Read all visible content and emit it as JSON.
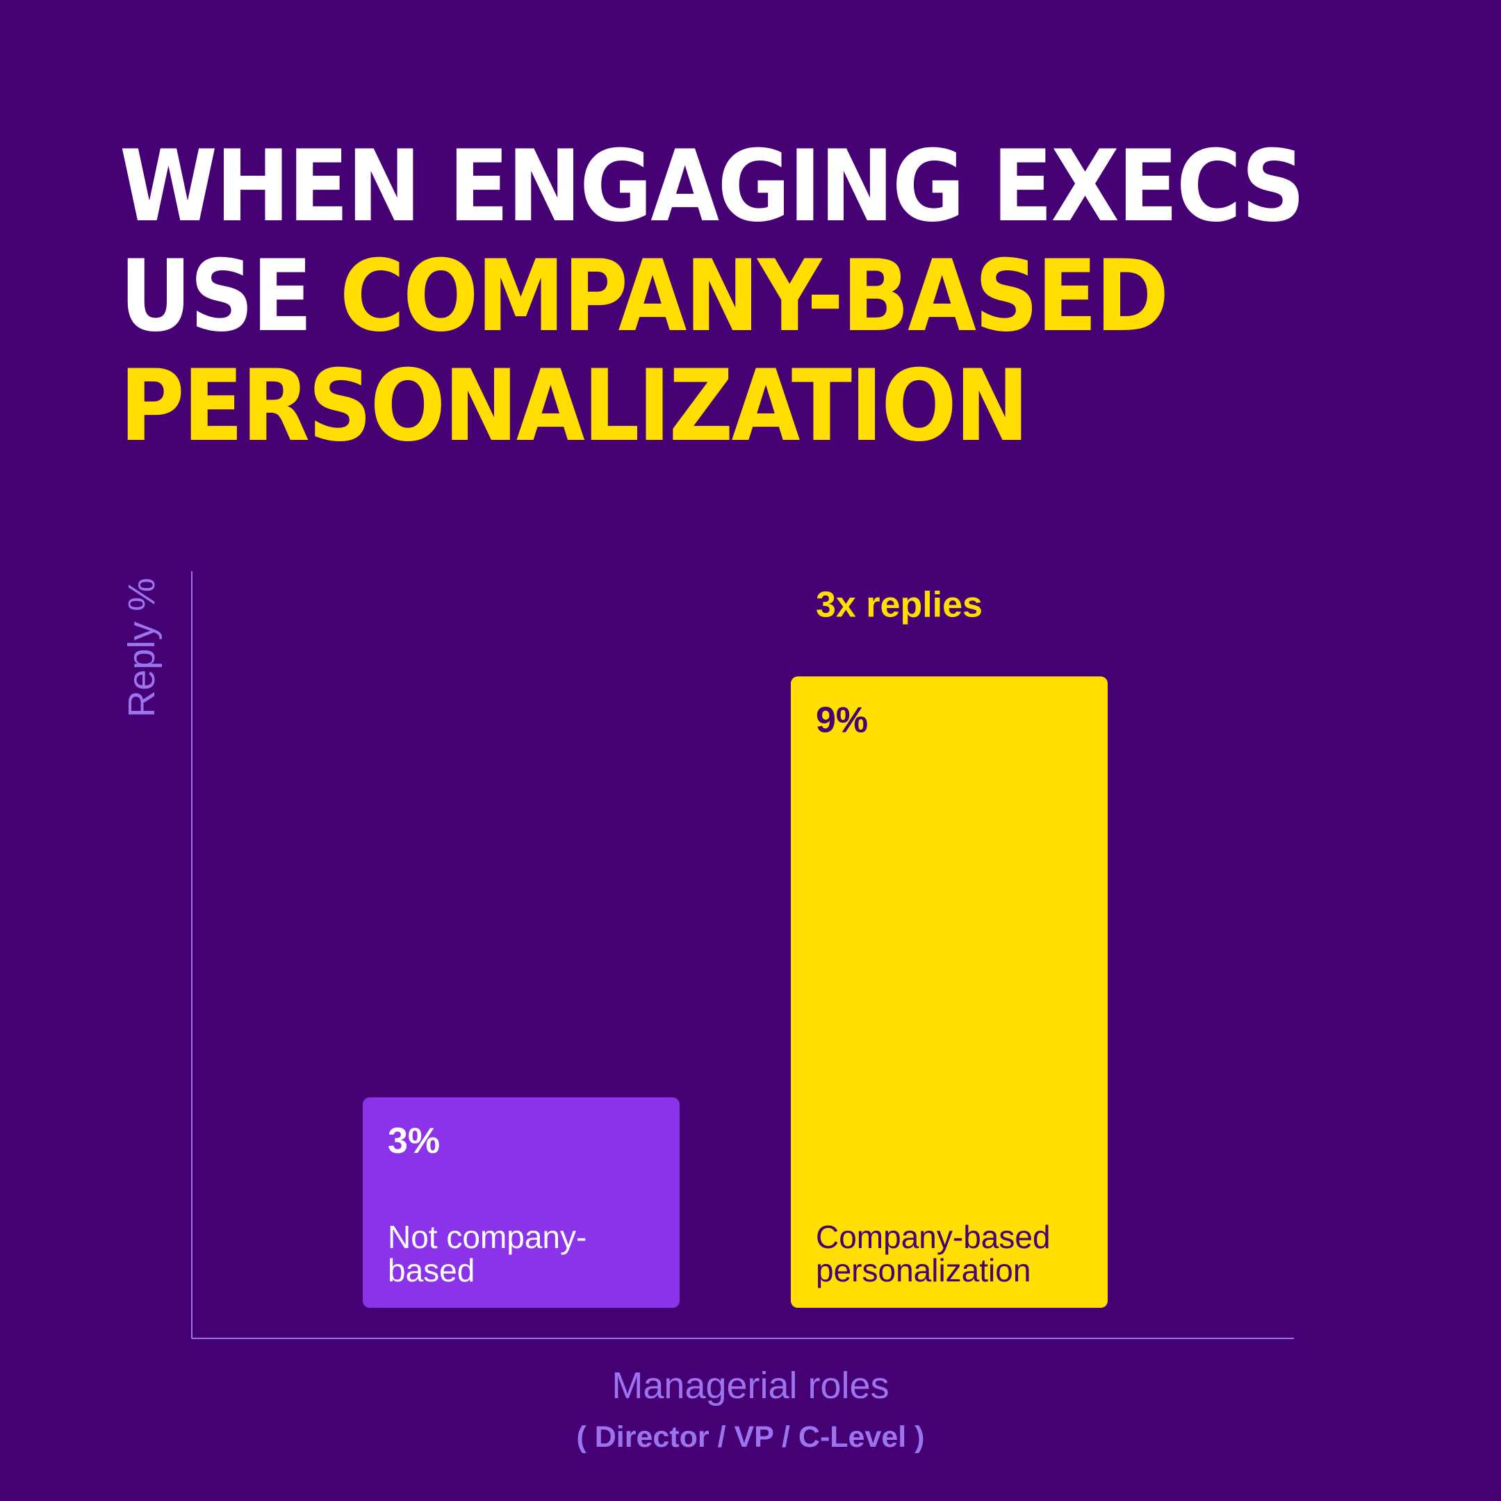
{
  "headline": {
    "line1": "WHEN ENGAGING EXECS",
    "line2_prefix": "USE ",
    "line2_highlight": "COMPANY-BASED",
    "line3_highlight": "PERSONALIZATION"
  },
  "colors": {
    "background": "#450073",
    "accent": "#FFDE00",
    "bar_primary": "#8A33E8",
    "axis": "#9D74F0"
  },
  "chart_data": {
    "type": "bar",
    "categories": [
      "Not company-based",
      "Company-based personalization"
    ],
    "values": [
      3,
      9
    ],
    "value_labels": [
      "3%",
      "9%"
    ],
    "category_label_lines": [
      [
        "Not company-",
        "based"
      ],
      [
        "Company-based",
        "personalization"
      ]
    ],
    "bar_colors": [
      "#8A33E8",
      "#FFDE00"
    ],
    "value_text_colors": [
      "#ffffff",
      "#450073"
    ],
    "annotation": {
      "text": "3x replies",
      "bar_index": 1,
      "color": "#FFDE00"
    },
    "xlabel": "Managerial roles",
    "xlabel_sub": "( Director / VP / C-Level )",
    "ylabel": "Reply %",
    "ylim": [
      0,
      10.5
    ],
    "grid": false,
    "legend": "none"
  }
}
